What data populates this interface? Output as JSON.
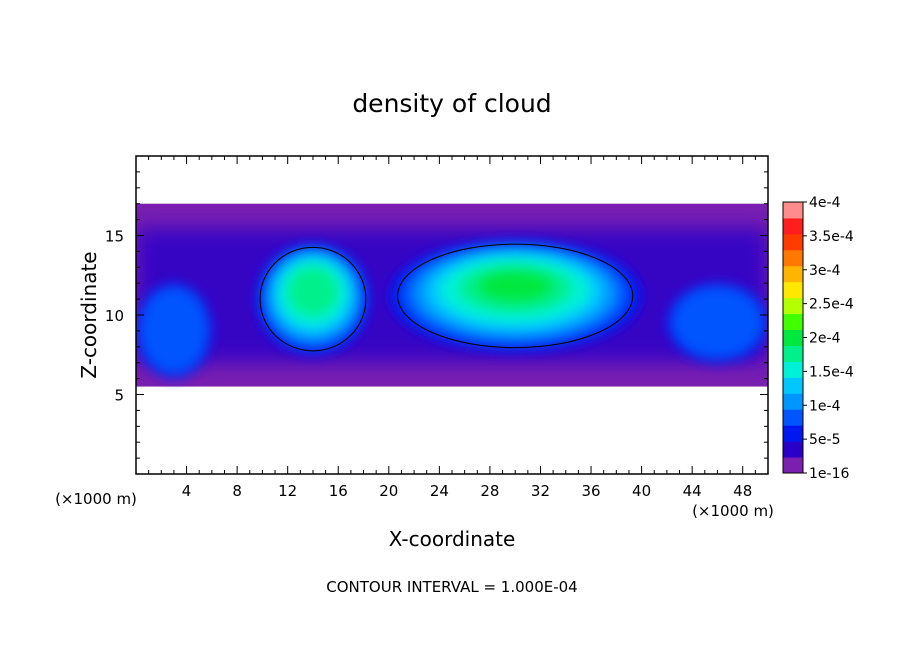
{
  "chart_data": {
    "type": "heatmap",
    "title": "density of cloud",
    "xlabel": "X-coordinate",
    "ylabel": "Z-coordinate",
    "x_unit_left": "(×1000 m)",
    "x_unit_right": "(×1000 m)",
    "footer": "CONTOUR INTERVAL = 1.000E-04",
    "xlim": [
      0,
      50
    ],
    "ylim": [
      0,
      20
    ],
    "x_ticks": [
      4,
      8,
      12,
      16,
      20,
      24,
      28,
      32,
      36,
      40,
      44,
      48
    ],
    "y_ticks": [
      5,
      10,
      15
    ],
    "colorbar": {
      "labels": [
        "4e-4",
        "3.5e-4",
        "3e-4",
        "2.5e-4",
        "2e-4",
        "1.5e-4",
        "1e-4",
        "5e-5",
        "1e-16"
      ],
      "levels": [
        {
          "value": 1e-16,
          "color": "#7a1fb0"
        },
        {
          "value": 2.5e-05,
          "color": "#2a00c8"
        },
        {
          "value": 5e-05,
          "color": "#0018f0"
        },
        {
          "value": 7.5e-05,
          "color": "#0055ff"
        },
        {
          "value": 0.0001,
          "color": "#0096ff"
        },
        {
          "value": 0.000125,
          "color": "#00c8ff"
        },
        {
          "value": 0.00015,
          "color": "#00f0d8"
        },
        {
          "value": 0.000175,
          "color": "#00f08c"
        },
        {
          "value": 0.0002,
          "color": "#00e840"
        },
        {
          "value": 0.000225,
          "color": "#40ff00"
        },
        {
          "value": 0.00025,
          "color": "#b4ff00"
        },
        {
          "value": 0.000275,
          "color": "#ffe800"
        },
        {
          "value": 0.0003,
          "color": "#ffb400"
        },
        {
          "value": 0.000325,
          "color": "#ff7800"
        },
        {
          "value": 0.00035,
          "color": "#ff3c00"
        },
        {
          "value": 0.000375,
          "color": "#ff1e1e"
        },
        {
          "value": 0.0004,
          "color": "#ff8c8c"
        }
      ]
    },
    "cloud_layer_z": [
      5.5,
      17
    ],
    "cells": [
      {
        "x": [
          9.5,
          18.5
        ],
        "z": [
          7.5,
          14.5
        ],
        "max": 0.00019
      },
      {
        "x": [
          20,
          40
        ],
        "z": [
          7.7,
          14.7
        ],
        "max": 0.0002
      },
      {
        "x": [
          42,
          50
        ],
        "z": [
          7,
          12
        ],
        "max": 8e-05
      },
      {
        "x": [
          0,
          6
        ],
        "z": [
          6,
          12
        ],
        "max": 8e-05
      }
    ],
    "contour_level": 0.0001
  }
}
